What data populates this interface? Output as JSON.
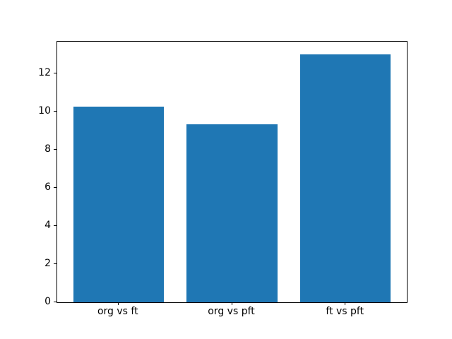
{
  "figure": {
    "background_color": "#ffffff",
    "spine_color": "#000000",
    "tick_color": "#000000"
  },
  "chart_data": {
    "type": "bar",
    "title": "",
    "xlabel": "",
    "ylabel": "",
    "categories": [
      "org vs ft",
      "org vs pft",
      "ft vs pft"
    ],
    "values": [
      10.25,
      9.33,
      13.0
    ],
    "bar_color": "#1f77b4",
    "bar_width_fraction": 0.8,
    "ylim": [
      0,
      13.65
    ],
    "yticks": [
      0,
      2,
      4,
      6,
      8,
      10,
      12
    ],
    "grid": false,
    "legend": null
  }
}
